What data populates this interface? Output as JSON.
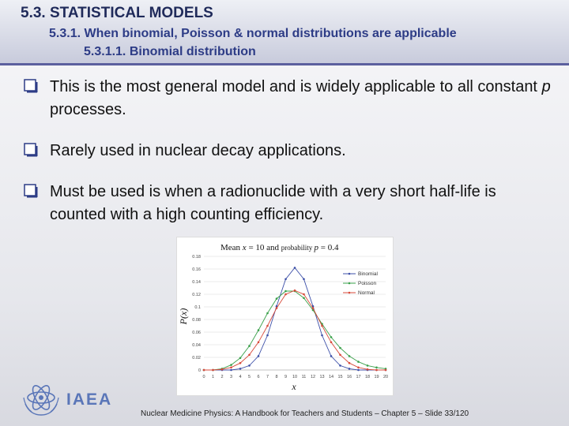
{
  "header": {
    "title": "5.3. STATISTICAL MODELS",
    "subtitle": "5.3.1. When binomial, Poisson & normal distributions are applicable",
    "subsubtitle": "5.3.1.1. Binomial distribution"
  },
  "bullets": [
    {
      "text_before": "This is the most general model and is widely applicable to all constant ",
      "italic": "p",
      "text_after": " processes."
    },
    {
      "text_before": "Rarely used in nuclear decay applications.",
      "italic": "",
      "text_after": ""
    },
    {
      "text_before": "Must be used is when a radionuclide with a very short half-life is counted with a high counting efficiency.",
      "italic": "",
      "text_after": ""
    }
  ],
  "logo": {
    "text": "IAEA"
  },
  "footer": {
    "text": "Nuclear Medicine Physics: A Handbook for Teachers and Students – Chapter 5 – Slide 33/120"
  },
  "colors": {
    "binomial": "#3c4fa8",
    "poisson": "#3aa04a",
    "normal": "#d84a3a",
    "accent": "#2d3c86"
  },
  "chart_data": {
    "type": "line",
    "title_parts": {
      "mean": "Mean ",
      "mean_var": "x",
      "mean_eq": " = 10 and ",
      "prob": "probability ",
      "prob_var": "p",
      "prob_eq": " = 0.4"
    },
    "xlabel": "x",
    "ylabel": "P(x)",
    "xlim": [
      0,
      20
    ],
    "ylim": [
      0,
      0.18
    ],
    "x_ticks": [
      0,
      1,
      2,
      3,
      4,
      5,
      6,
      7,
      8,
      9,
      10,
      11,
      12,
      13,
      14,
      15,
      16,
      17,
      18,
      19,
      20
    ],
    "y_ticks": [
      "0",
      "0.02",
      "0.04",
      "0.06",
      "0.08",
      "0.1",
      "0.12",
      "0.14",
      "0.16",
      "0.18"
    ],
    "legend_position": "top-right",
    "x": [
      0,
      1,
      2,
      3,
      4,
      5,
      6,
      7,
      8,
      9,
      10,
      11,
      12,
      13,
      14,
      15,
      16,
      17,
      18,
      19,
      20
    ],
    "series": [
      {
        "name": "Binomial",
        "color": "#3c4fa8",
        "values": [
          0,
          0,
          0,
          0,
          0.002,
          0.007,
          0.022,
          0.055,
          0.101,
          0.144,
          0.162,
          0.144,
          0.101,
          0.055,
          0.022,
          0.007,
          0.002,
          0,
          0,
          0,
          0
        ]
      },
      {
        "name": "Poisson",
        "color": "#3aa04a",
        "values": [
          0,
          0,
          0.002,
          0.008,
          0.019,
          0.038,
          0.063,
          0.09,
          0.113,
          0.125,
          0.125,
          0.114,
          0.095,
          0.073,
          0.052,
          0.035,
          0.022,
          0.013,
          0.007,
          0.004,
          0.002
        ]
      },
      {
        "name": "Normal",
        "color": "#d84a3a",
        "values": [
          0,
          0,
          0.001,
          0.004,
          0.011,
          0.024,
          0.044,
          0.07,
          0.098,
          0.12,
          0.126,
          0.12,
          0.098,
          0.07,
          0.044,
          0.024,
          0.011,
          0.004,
          0.001,
          0,
          0
        ]
      }
    ]
  }
}
